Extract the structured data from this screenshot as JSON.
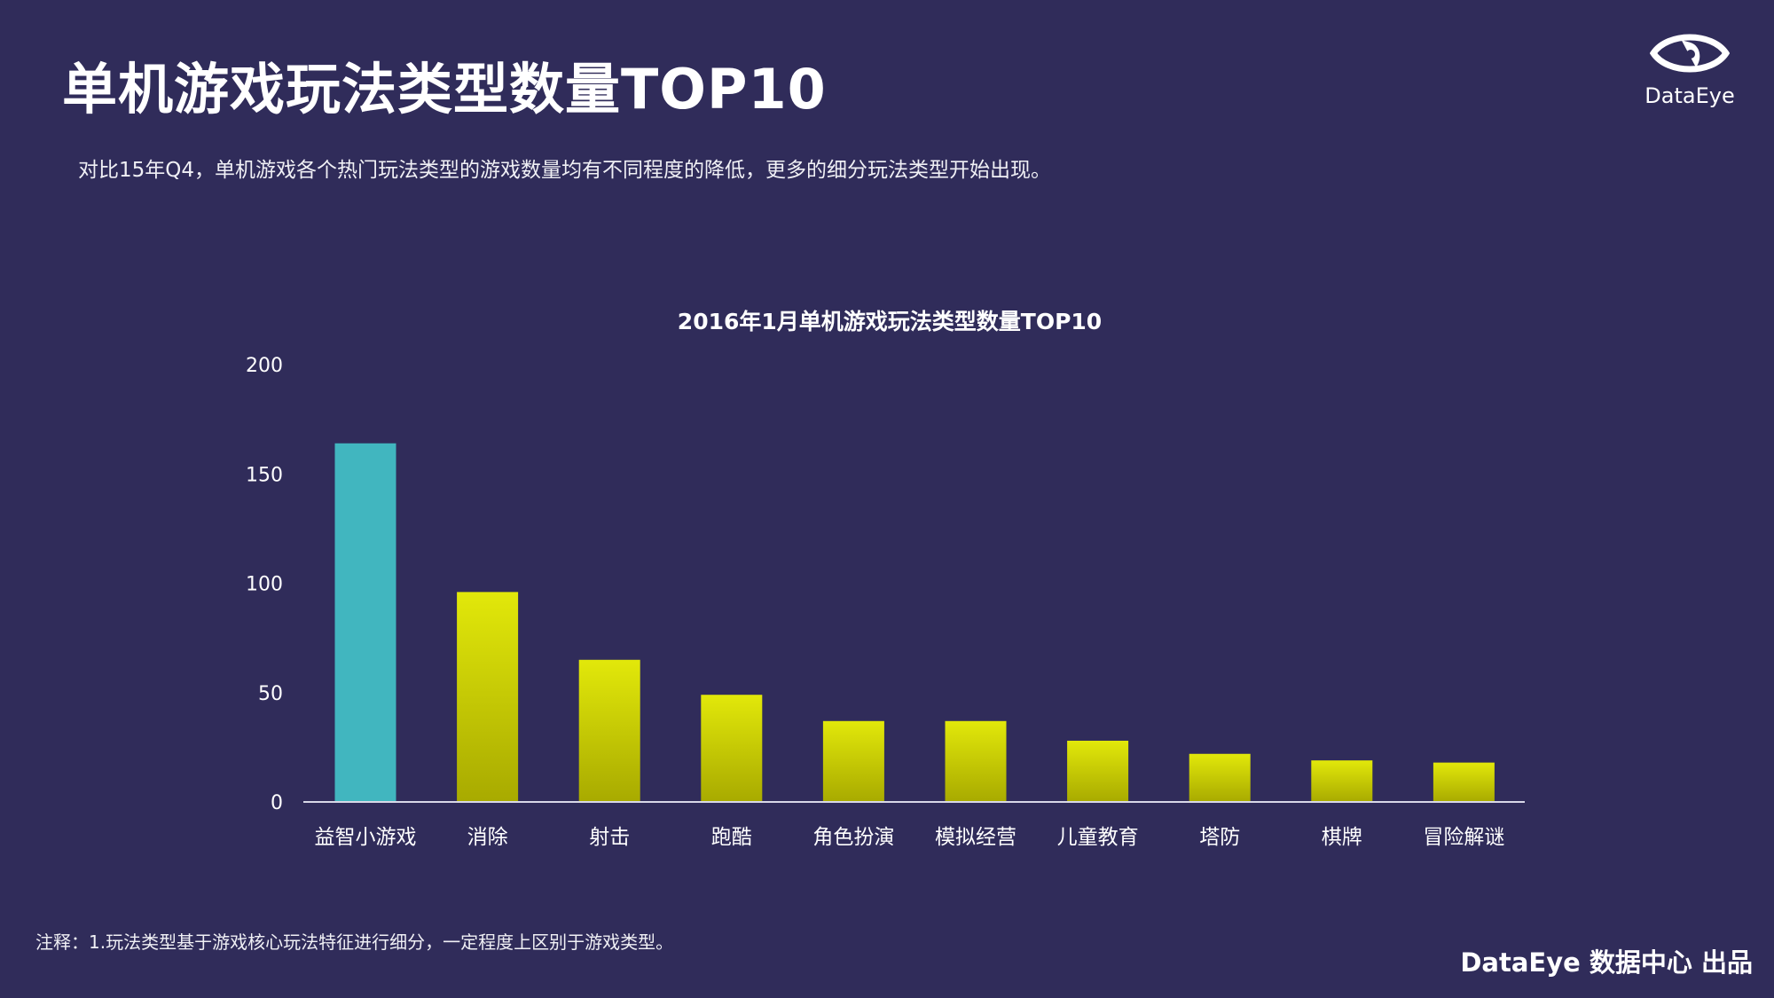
{
  "header": {
    "title": "单机游戏玩法类型数量TOP10",
    "subtitle": "对比15年Q4，单机游戏各个热门玩法类型的游戏数量均有不同程度的降低，更多的细分玩法类型开始出现。",
    "logo_text": "DataEye"
  },
  "chart_data": {
    "type": "bar",
    "title": "2016年1月单机游戏玩法类型数量TOP10",
    "categories": [
      "益智小游戏",
      "消除",
      "射击",
      "跑酷",
      "角色扮演",
      "模拟经营",
      "儿童教育",
      "塔防",
      "棋牌",
      "冒险解谜"
    ],
    "values": [
      164,
      96,
      65,
      49,
      37,
      37,
      28,
      22,
      19,
      18
    ],
    "ylim": [
      0,
      200
    ],
    "yticks": [
      0,
      50,
      100,
      150,
      200
    ],
    "grid": false,
    "xlabel": "",
    "ylabel": "",
    "colors": {
      "highlight": "#41b6bf",
      "bar_top": "#e2e80a",
      "bar_bottom": "#a8aa00",
      "axis": "#d8d8e8"
    }
  },
  "footer": {
    "note": "注释：1.玩法类型基于游戏核心玩法特征进行细分，一定程度上区别于游戏类型。",
    "credit": "DataEye 数据中心 出品"
  },
  "colors": {
    "background": "#302c5a"
  }
}
